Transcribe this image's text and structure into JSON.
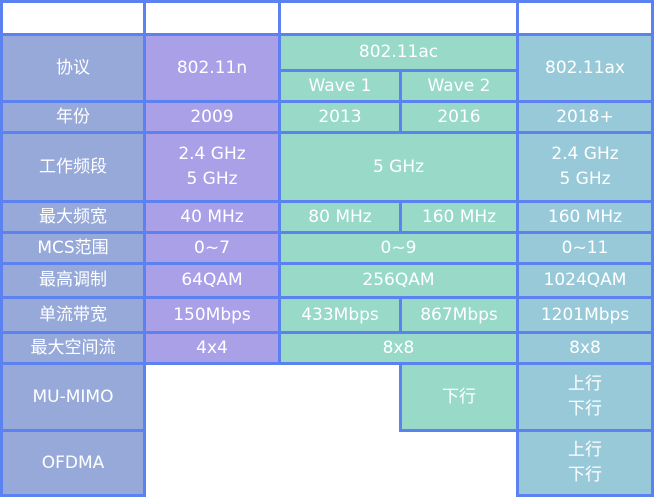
{
  "colors": {
    "border": "#5b82f0",
    "label_col": "#97a9d9",
    "n_col": "#a9a0e8",
    "ac_col": "#98d9c8",
    "ax_col": "#98c9d9"
  },
  "header": {
    "protocol": "协议",
    "n": "802.11n",
    "ac": "802.11ac",
    "wave1": "Wave 1",
    "wave2": "Wave 2",
    "ax": "802.11ax"
  },
  "rows": [
    {
      "label": "年份",
      "n": "2009",
      "w1": "2013",
      "w2": "2016",
      "ax": "2018+"
    },
    {
      "label": "工作频段",
      "n": "2.4 GHz\n5 GHz",
      "ac": "5 GHz",
      "ax": "2.4 GHz\n5 GHz"
    },
    {
      "label": "最大频宽",
      "n": "40 MHz",
      "w1": "80 MHz",
      "w2": "160 MHz",
      "ax": "160 MHz"
    },
    {
      "label": "MCS范围",
      "n": "0~7",
      "ac": "0~9",
      "ax": "0~11"
    },
    {
      "label": "最高调制",
      "n": "64QAM",
      "ac": "256QAM",
      "ax": "1024QAM"
    },
    {
      "label": "单流带宽",
      "n": "150Mbps",
      "w1": "433Mbps",
      "w2": "867Mbps",
      "ax": "1201Mbps"
    },
    {
      "label": "最大空间流",
      "n": "4x4",
      "ac": "8x8",
      "ax": "8x8"
    },
    {
      "label": "MU-MIMO",
      "w2": "下行",
      "ax": "上行\n下行"
    },
    {
      "label": "OFDMA",
      "ax": "上行\n下行"
    }
  ]
}
